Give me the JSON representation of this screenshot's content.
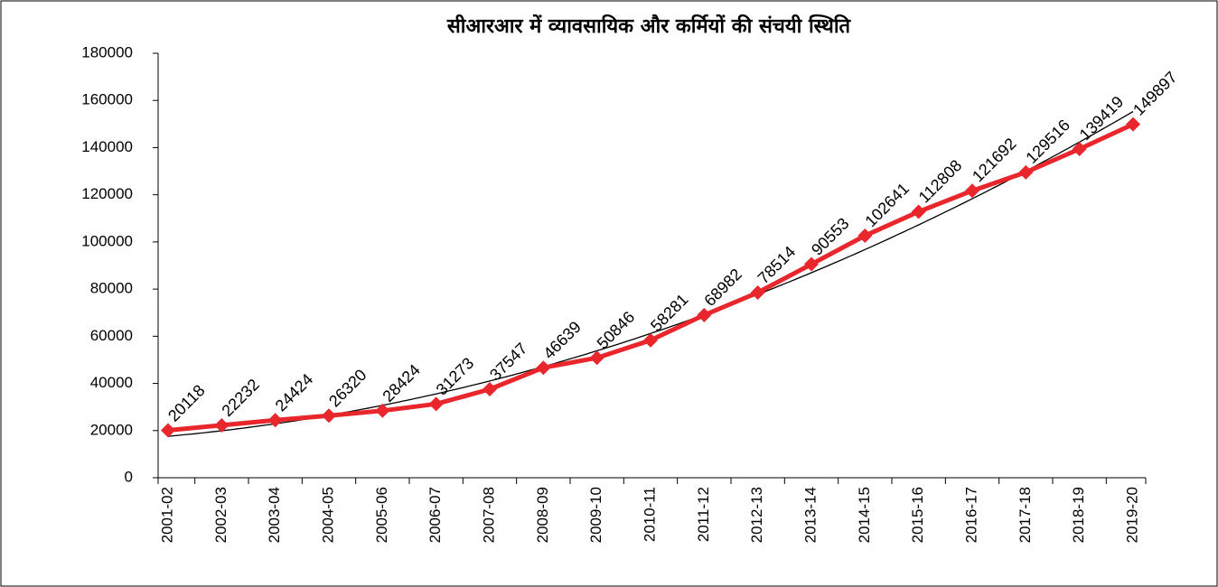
{
  "chart_data": {
    "type": "line",
    "title": "सीआरआर में व्यावसायिक और कर्मियों की संचयी स्थिति",
    "categories": [
      "2001-02",
      "2002-03",
      "2003-04",
      "2004-05",
      "2005-06",
      "2006-07",
      "2007-08",
      "2008-09",
      "2009-10",
      "2010-11",
      "2011-12",
      "2012-13",
      "2013-14",
      "2014-15",
      "2015-16",
      "2016-17",
      "2017-18",
      "2018-19",
      "2019-20"
    ],
    "series": [
      {
        "name": "",
        "color": "#e8262c",
        "values": [
          20118,
          22232,
          24424,
          26320,
          28424,
          31273,
          37547,
          46639,
          50846,
          58281,
          68982,
          78514,
          90553,
          102641,
          112808,
          121692,
          129516,
          139419,
          149897
        ]
      }
    ],
    "ylim": [
      0,
      180000
    ],
    "yticks": [
      0,
      20000,
      40000,
      60000,
      80000,
      100000,
      120000,
      140000,
      160000,
      180000
    ],
    "trendline": "polynomial",
    "trendline_color": "#000000",
    "data_labels": true
  }
}
